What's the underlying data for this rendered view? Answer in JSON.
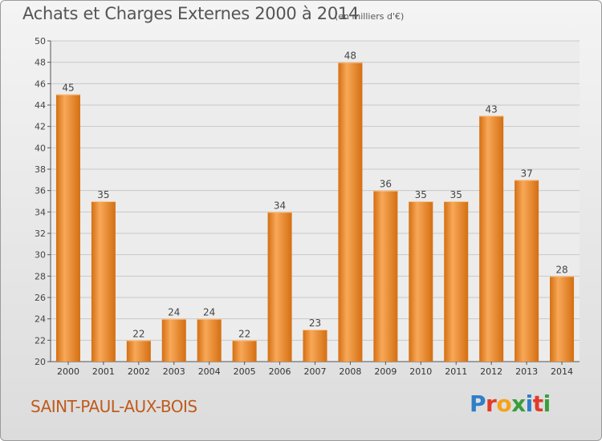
{
  "title": "Achats et Charges Externes 2000 à 2014",
  "unit_note": "(en milliers d'€)",
  "place_name": "SAINT-PAUL-AUX-BOIS",
  "logo": {
    "letters": [
      {
        "ch": "P",
        "color": "#2f7fc8"
      },
      {
        "ch": "r",
        "color": "#e23a2a"
      },
      {
        "ch": "o",
        "color": "#f5a21b"
      },
      {
        "ch": "x",
        "color": "#3a9e3a"
      },
      {
        "ch": "i",
        "color": "#2f7fc8"
      },
      {
        "ch": "t",
        "color": "#e23a2a"
      },
      {
        "ch": "i",
        "color": "#3a9e3a"
      }
    ]
  },
  "colors": {
    "bar_light": "#f8a858",
    "bar_dark": "#d46f12",
    "axis": "#555555",
    "grid": "#c8c8c8",
    "place": "#c05b1c"
  },
  "chart_data": {
    "type": "bar",
    "categories": [
      "2000",
      "2001",
      "2002",
      "2003",
      "2004",
      "2005",
      "2006",
      "2007",
      "2008",
      "2009",
      "2010",
      "2011",
      "2012",
      "2013",
      "2014"
    ],
    "values": [
      45,
      35,
      22,
      24,
      24,
      22,
      34,
      23,
      48,
      36,
      35,
      35,
      43,
      37,
      28
    ],
    "ylim": [
      20,
      50
    ],
    "yticks": [
      20,
      22,
      24,
      26,
      28,
      30,
      32,
      34,
      36,
      38,
      40,
      42,
      44,
      46,
      48,
      50
    ],
    "grid": true,
    "data_labels": true
  }
}
